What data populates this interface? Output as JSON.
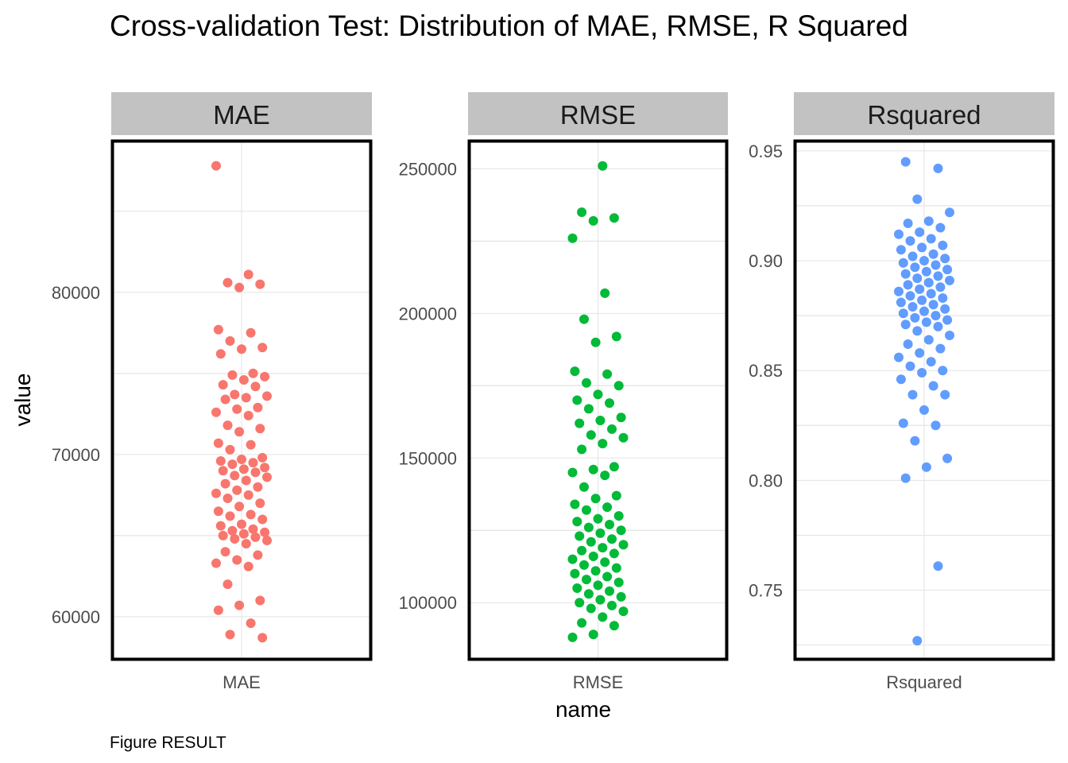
{
  "chart_data": {
    "type": "scatter",
    "title": "Cross-validation Test: Distribution of MAE, RMSE, R Squared",
    "xlabel": "name",
    "ylabel": "value",
    "caption": "Figure RESULT",
    "grid": true,
    "legend": "none",
    "panels": [
      {
        "name": "MAE",
        "x_tick": "MAE",
        "color": "#F8766D",
        "ylim": [
          57300,
          89400
        ],
        "yticks": [
          60000,
          70000,
          80000
        ],
        "ytick_labels": [
          "60000",
          "70000",
          "80000"
        ],
        "values": [
          87800,
          81100,
          80600,
          80500,
          80300,
          77700,
          77500,
          77000,
          76600,
          76500,
          76200,
          75000,
          74900,
          74800,
          74600,
          74300,
          74200,
          73700,
          73600,
          73500,
          73400,
          72900,
          72800,
          72600,
          72400,
          71800,
          71600,
          71400,
          70700,
          70600,
          70300,
          69800,
          69700,
          69600,
          69500,
          69400,
          69200,
          69100,
          69000,
          68900,
          68700,
          68600,
          68400,
          68200,
          68000,
          67800,
          67600,
          67500,
          67300,
          67000,
          66800,
          66500,
          66300,
          66200,
          66000,
          65700,
          65600,
          65400,
          65300,
          65200,
          65100,
          65000,
          64900,
          64800,
          64700,
          64500,
          64000,
          63800,
          63500,
          63300,
          63100,
          62000,
          61000,
          60700,
          60400,
          59600,
          58900,
          58700
        ]
      },
      {
        "name": "RMSE",
        "x_tick": "RMSE",
        "color": "#00BA38",
        "ylim": [
          80000,
          260000
        ],
        "yticks": [
          100000,
          150000,
          200000,
          250000
        ],
        "ytick_labels": [
          "100000",
          "150000",
          "200000",
          "250000"
        ],
        "values": [
          251000,
          235000,
          233000,
          232000,
          226000,
          207000,
          198000,
          192000,
          190000,
          180000,
          179000,
          176000,
          175000,
          172000,
          170000,
          169000,
          167000,
          164000,
          163000,
          162000,
          160000,
          158000,
          157000,
          155000,
          153000,
          147000,
          146000,
          145000,
          144000,
          140000,
          137000,
          136000,
          134000,
          133000,
          132000,
          130000,
          129000,
          128000,
          127000,
          126000,
          125000,
          124000,
          123000,
          122000,
          121000,
          120000,
          119000,
          118000,
          117000,
          116000,
          115000,
          114000,
          113000,
          112000,
          111000,
          110000,
          109000,
          108000,
          107000,
          106000,
          105000,
          104000,
          103000,
          102000,
          101000,
          100000,
          99000,
          98000,
          97000,
          95000,
          93000,
          92000,
          89000,
          88000
        ]
      },
      {
        "name": "Rsquared",
        "x_tick": "Rsquared",
        "color": "#619CFF",
        "ylim": [
          0.718,
          0.955
        ],
        "yticks": [
          0.75,
          0.8,
          0.85,
          0.9,
          0.95
        ],
        "ytick_labels": [
          "0.75",
          "0.80",
          "0.85",
          "0.90",
          "0.95"
        ],
        "values": [
          0.945,
          0.942,
          0.928,
          0.922,
          0.918,
          0.917,
          0.915,
          0.913,
          0.912,
          0.91,
          0.909,
          0.907,
          0.906,
          0.905,
          0.903,
          0.902,
          0.901,
          0.9,
          0.899,
          0.898,
          0.897,
          0.896,
          0.895,
          0.894,
          0.893,
          0.892,
          0.891,
          0.89,
          0.889,
          0.888,
          0.887,
          0.886,
          0.885,
          0.884,
          0.883,
          0.882,
          0.881,
          0.88,
          0.879,
          0.878,
          0.877,
          0.876,
          0.875,
          0.874,
          0.873,
          0.872,
          0.871,
          0.87,
          0.868,
          0.866,
          0.864,
          0.862,
          0.86,
          0.858,
          0.856,
          0.854,
          0.852,
          0.85,
          0.849,
          0.846,
          0.843,
          0.839,
          0.839,
          0.832,
          0.826,
          0.825,
          0.818,
          0.81,
          0.806,
          0.801,
          0.761,
          0.727
        ]
      }
    ]
  }
}
